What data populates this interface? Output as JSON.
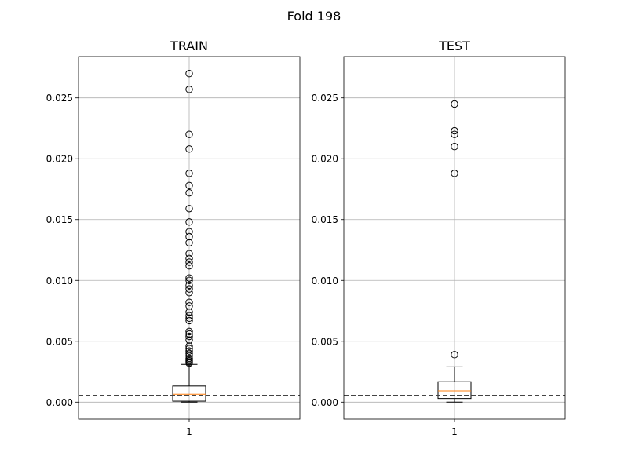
{
  "figure": {
    "suptitle": "Fold 198"
  },
  "chart_data": [
    {
      "type": "box",
      "title": "TRAIN",
      "categories": [
        "1"
      ],
      "ylim": [
        -0.0014,
        0.0284
      ],
      "yticks": [
        0.0,
        0.005,
        0.01,
        0.015,
        0.02,
        0.025
      ],
      "ytick_labels": [
        "0.000",
        "0.005",
        "0.010",
        "0.015",
        "0.020",
        "0.025"
      ],
      "grid": true,
      "reference_line": 0.00055,
      "box": {
        "whisker_low": 0.0,
        "q1": 8e-05,
        "median": 0.00065,
        "q3": 0.00132,
        "whisker_high": 0.0031
      },
      "outliers": [
        0.027,
        0.0257,
        0.022,
        0.0208,
        0.0188,
        0.0178,
        0.0172,
        0.0159,
        0.0148,
        0.014,
        0.0136,
        0.0131,
        0.0122,
        0.0118,
        0.0115,
        0.0112,
        0.0102,
        0.01,
        0.0096,
        0.0093,
        0.009,
        0.0082,
        0.0079,
        0.0074,
        0.0071,
        0.0069,
        0.0067,
        0.0058,
        0.0056,
        0.0054,
        0.0051,
        0.0046,
        0.0044,
        0.0042,
        0.004,
        0.0038,
        0.0036,
        0.0035,
        0.0034,
        0.0033,
        0.0032
      ]
    },
    {
      "type": "box",
      "title": "TEST",
      "categories": [
        "1"
      ],
      "ylim": [
        -0.0014,
        0.0284
      ],
      "yticks": [
        0.0,
        0.005,
        0.01,
        0.015,
        0.02,
        0.025
      ],
      "ytick_labels": [
        "0.000",
        "0.005",
        "0.010",
        "0.015",
        "0.020",
        "0.025"
      ],
      "grid": true,
      "reference_line": 0.00055,
      "box": {
        "whisker_low": 0.0,
        "q1": 0.0003,
        "median": 0.00092,
        "q3": 0.00168,
        "whisker_high": 0.0029
      },
      "outliers": [
        0.0245,
        0.0223,
        0.022,
        0.021,
        0.0188,
        0.0039
      ]
    }
  ],
  "colors": {
    "median": "#ff7f0e",
    "grid": "#b0b0b0",
    "reference_line": "#444444"
  }
}
